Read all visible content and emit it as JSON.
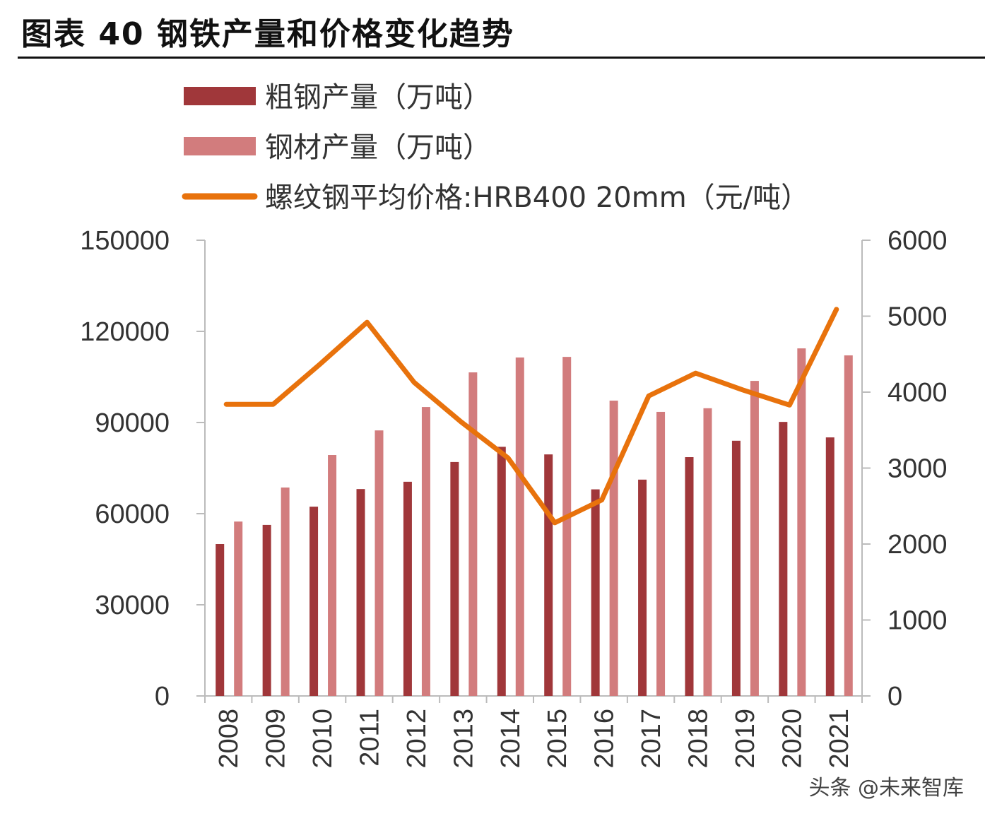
{
  "title": "图表 40  钢铁产量和价格变化趋势",
  "watermark": "头条 @未来智库",
  "chart_data": {
    "type": "bar+line",
    "categories": [
      "2008",
      "2009",
      "2010",
      "2011",
      "2012",
      "2013",
      "2014",
      "2015",
      "2016",
      "2017",
      "2018",
      "2019",
      "2020",
      "2021"
    ],
    "series": [
      {
        "name": "粗钢产量（万吨）",
        "type": "bar",
        "axis": "left",
        "color": "#a0373a",
        "values": [
          50000,
          56300,
          62300,
          68100,
          70500,
          77000,
          82000,
          79500,
          68000,
          71200,
          78600,
          84000,
          90200,
          85100
        ]
      },
      {
        "name": "钢材产量（万吨）",
        "type": "bar",
        "axis": "left",
        "color": "#d27c7d",
        "values": [
          57400,
          68600,
          79300,
          87400,
          95100,
          106500,
          111400,
          111600,
          97200,
          93500,
          94700,
          103700,
          114400,
          112100
        ]
      },
      {
        "name": "螺纹钢平均价格:HRB400 20mm（元/吨）",
        "type": "line",
        "axis": "right",
        "color": "#e8720c",
        "values": [
          3840,
          3840,
          4370,
          4920,
          4130,
          3610,
          3135,
          2280,
          2580,
          3950,
          4250,
          4030,
          3830,
          5090
        ]
      }
    ],
    "left_axis": {
      "ylim": [
        0,
        150000
      ],
      "ticks": [
        "0",
        "30000",
        "60000",
        "90000",
        "120000",
        "150000"
      ]
    },
    "right_axis": {
      "ylim": [
        0,
        6000
      ],
      "ticks": [
        "0",
        "1000",
        "2000",
        "3000",
        "4000",
        "5000",
        "6000"
      ]
    },
    "grid": false,
    "legend": "top"
  }
}
